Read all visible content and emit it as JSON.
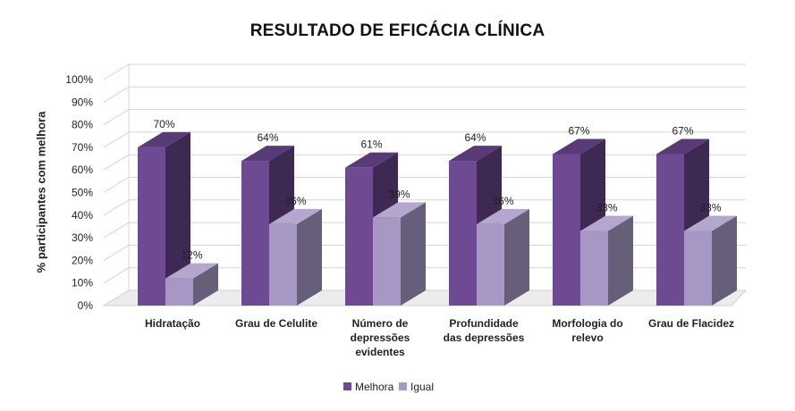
{
  "chart_data": {
    "type": "bar",
    "title": "RESULTADO DE EFICÁCIA CLÍNICA",
    "ylabel": "% participantes com melhora",
    "xlabel": "",
    "ylim": [
      0,
      100
    ],
    "yticks": [
      "0%",
      "10%",
      "20%",
      "30%",
      "40%",
      "50%",
      "60%",
      "70%",
      "80%",
      "90%",
      "100%"
    ],
    "categories": [
      [
        "Hidratação"
      ],
      [
        "Grau de Celulite"
      ],
      [
        "Número de",
        "depressões",
        "evidentes"
      ],
      [
        "Profundidade",
        "das depressões"
      ],
      [
        "Morfologia do",
        "relevo"
      ],
      [
        "Grau de Flacidez"
      ]
    ],
    "series": [
      {
        "name": "Melhora",
        "values": [
          70,
          64,
          61,
          64,
          67,
          67
        ],
        "labels": [
          "70%",
          "64%",
          "61%",
          "64%",
          "67%",
          "67%"
        ],
        "color": "#6e4a93"
      },
      {
        "name": "Igual",
        "values": [
          12,
          36,
          39,
          36,
          33,
          33
        ],
        "labels": [
          "12%",
          "36%",
          "39%",
          "36%",
          "33%",
          "33%"
        ],
        "color": "#a697c4"
      }
    ],
    "legend_position": "bottom",
    "grid": true,
    "style": "3d-column"
  }
}
